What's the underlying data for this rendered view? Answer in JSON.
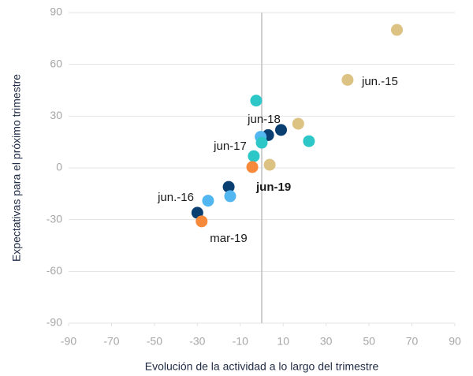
{
  "chart_data": {
    "type": "scatter",
    "xlabel": "Evolución de la actividad a lo largo del trimestre",
    "ylabel": "Expectativas para el próximo trimestre",
    "x": [
      63,
      40,
      -2.6,
      9,
      3,
      17,
      22,
      -0.5,
      0,
      -3.7,
      3.7,
      -4.4,
      -15.4,
      -14.7,
      -25,
      -30,
      -28
    ],
    "values": [
      80,
      51,
      39,
      22,
      19,
      25.6,
      15.5,
      18,
      14.6,
      6.8,
      1.8,
      0.5,
      -11,
      -16.4,
      -19,
      -26,
      -31
    ],
    "colors": [
      "#dcc283",
      "#dcc283",
      "#2ec7c7",
      "#0a3f72",
      "#0a3f72",
      "#dcc283",
      "#2ec7c7",
      "#52b6f0",
      "#2ec7c7",
      "#2ec7c7",
      "#dcc283",
      "#f7893a",
      "#0a3f72",
      "#52b6f0",
      "#52b6f0",
      "#0a3f72",
      "#f7893a"
    ],
    "annotations": [
      "jun.-15",
      "jun-18",
      "jun-17",
      "jun-19",
      "jun.-16",
      "mar-19"
    ],
    "xlim": [
      -90,
      90
    ],
    "xticks": [
      -90,
      -70,
      -50,
      -30,
      -10,
      10,
      30,
      50,
      70,
      90
    ],
    "ylim": [
      -90,
      90
    ],
    "yticks": [
      -90,
      -60,
      -30,
      0,
      30,
      60,
      90
    ],
    "grid": true
  }
}
